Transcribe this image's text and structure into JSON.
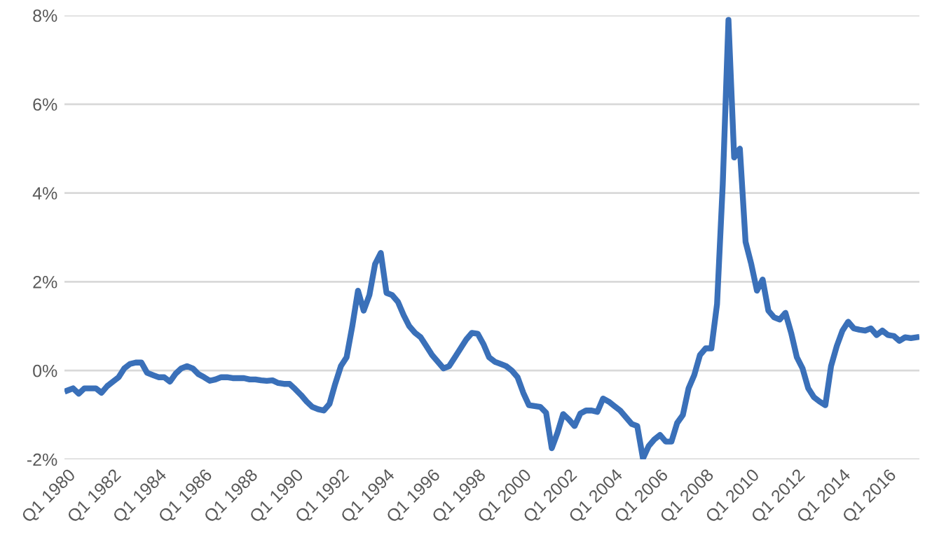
{
  "chart_data": {
    "type": "line",
    "categories": [
      "Q1 1980",
      null,
      null,
      null,
      null,
      null,
      null,
      null,
      "Q1 1982",
      null,
      null,
      null,
      null,
      null,
      null,
      null,
      "Q1 1984",
      null,
      null,
      null,
      null,
      null,
      null,
      null,
      "Q1 1986",
      null,
      null,
      null,
      null,
      null,
      null,
      null,
      "Q1 1988",
      null,
      null,
      null,
      null,
      null,
      null,
      null,
      "Q1 1990",
      null,
      null,
      null,
      null,
      null,
      null,
      null,
      "Q1 1992",
      null,
      null,
      null,
      null,
      null,
      null,
      null,
      "Q1 1994",
      null,
      null,
      null,
      null,
      null,
      null,
      null,
      "Q1 1996",
      null,
      null,
      null,
      null,
      null,
      null,
      null,
      "Q1 1998",
      null,
      null,
      null,
      null,
      null,
      null,
      null,
      "Q1 2000",
      null,
      null,
      null,
      null,
      null,
      null,
      null,
      "Q1 2002",
      null,
      null,
      null,
      null,
      null,
      null,
      null,
      "Q1 2004",
      null,
      null,
      null,
      null,
      null,
      null,
      null,
      "Q1 2006",
      null,
      null,
      null,
      null,
      null,
      null,
      null,
      "Q1 2008",
      null,
      null,
      null,
      null,
      null,
      null,
      null,
      "Q1 2010",
      null,
      null,
      null,
      null,
      null,
      null,
      null,
      "Q1 2012",
      null,
      null,
      null,
      null,
      null,
      null,
      null,
      "Q1 2014",
      null,
      null,
      null,
      null,
      null,
      null,
      null,
      "Q1 2016",
      null,
      null,
      null,
      null,
      null
    ],
    "series": [
      {
        "color": "#3a70b9",
        "values": [
          -0.45,
          -0.4,
          -0.52,
          -0.4,
          -0.4,
          -0.4,
          -0.5,
          -0.35,
          -0.25,
          -0.15,
          0.05,
          0.15,
          0.18,
          0.18,
          -0.05,
          -0.1,
          -0.15,
          -0.15,
          -0.25,
          -0.07,
          0.05,
          0.1,
          0.05,
          -0.08,
          -0.15,
          -0.23,
          -0.2,
          -0.15,
          -0.15,
          -0.17,
          -0.17,
          -0.17,
          -0.2,
          -0.2,
          -0.22,
          -0.23,
          -0.22,
          -0.28,
          -0.3,
          -0.3,
          -0.42,
          -0.55,
          -0.7,
          -0.82,
          -0.87,
          -0.9,
          -0.75,
          -0.3,
          0.1,
          0.3,
          1.0,
          1.8,
          1.35,
          1.7,
          2.4,
          2.65,
          1.75,
          1.7,
          1.55,
          1.25,
          1.0,
          0.85,
          0.75,
          0.55,
          0.35,
          0.2,
          0.05,
          0.1,
          0.3,
          0.5,
          0.7,
          0.85,
          0.83,
          0.6,
          0.3,
          0.2,
          0.15,
          0.1,
          0.0,
          -0.15,
          -0.5,
          -0.78,
          -0.8,
          -0.82,
          -0.95,
          -1.75,
          -1.4,
          -0.98,
          -1.1,
          -1.25,
          -0.97,
          -0.9,
          -0.9,
          -0.93,
          -0.63,
          -0.7,
          -0.8,
          -0.9,
          -1.05,
          -1.2,
          -1.25,
          -1.98,
          -1.7,
          -1.55,
          -1.45,
          -1.6,
          -1.6,
          -1.18,
          -1.0,
          -0.4,
          -0.1,
          0.35,
          0.5,
          0.5,
          1.5,
          4.2,
          7.9,
          4.8,
          5.0,
          2.9,
          2.4,
          1.8,
          2.05,
          1.35,
          1.2,
          1.15,
          1.3,
          0.85,
          0.3,
          0.05,
          -0.4,
          -0.6,
          -0.7,
          -0.78,
          0.1,
          0.55,
          0.9,
          1.1,
          0.95,
          0.92,
          0.9,
          0.95,
          0.8,
          0.9,
          0.8,
          0.78,
          0.67,
          0.75,
          0.73,
          0.75
        ]
      }
    ],
    "ylim": [
      -2,
      8
    ],
    "yticks": [
      {
        "value": -2,
        "label": "-2%"
      },
      {
        "value": 0,
        "label": "0%"
      },
      {
        "value": 2,
        "label": "2%"
      },
      {
        "value": 4,
        "label": "4%"
      },
      {
        "value": 6,
        "label": "6%"
      },
      {
        "value": 8,
        "label": "8%"
      }
    ],
    "grid": "y",
    "line_style": "solid"
  }
}
